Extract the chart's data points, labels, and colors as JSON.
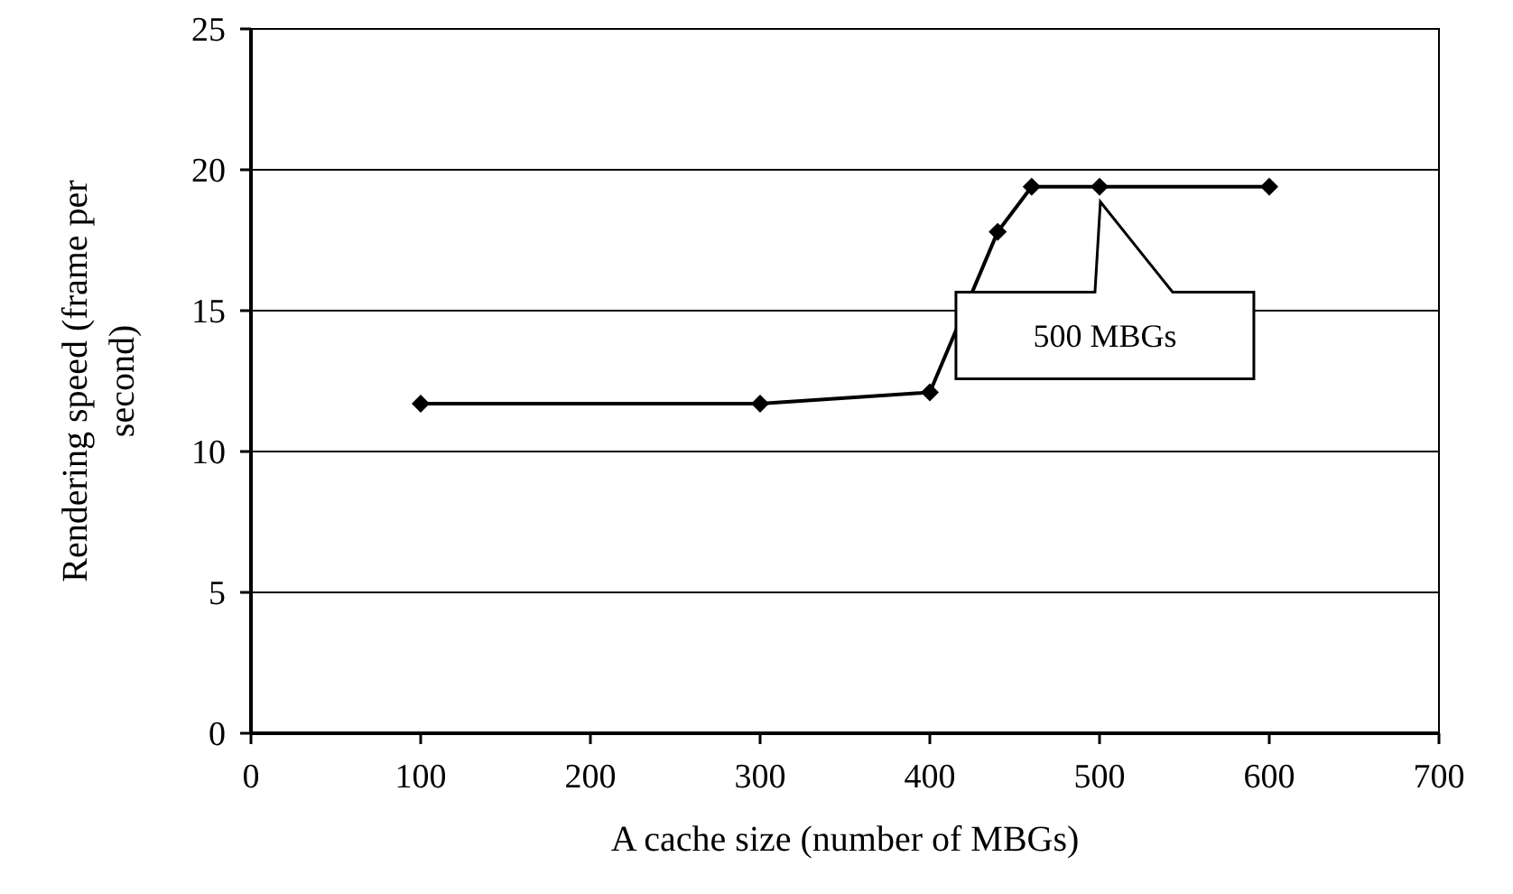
{
  "chart_data": {
    "type": "line",
    "xlabel": "A cache size (number of MBGs)",
    "ylabel": "Rendering speed (frame per second)",
    "x": [
      100,
      300,
      400,
      440,
      460,
      500,
      600
    ],
    "series": [
      {
        "color": "#000000",
        "values": [
          11.7,
          11.7,
          12.1,
          17.8,
          19.4,
          19.4,
          19.4
        ]
      }
    ],
    "xlim": [
      0,
      700
    ],
    "xticks": [
      0,
      100,
      200,
      300,
      400,
      500,
      600,
      700
    ],
    "ylim": [
      0,
      25
    ],
    "yticks": [
      0,
      5,
      10,
      15,
      20,
      25
    ],
    "grid": "y",
    "marker": "diamond",
    "line_style": "solid",
    "annotations": [
      "500 MBGs"
    ]
  }
}
